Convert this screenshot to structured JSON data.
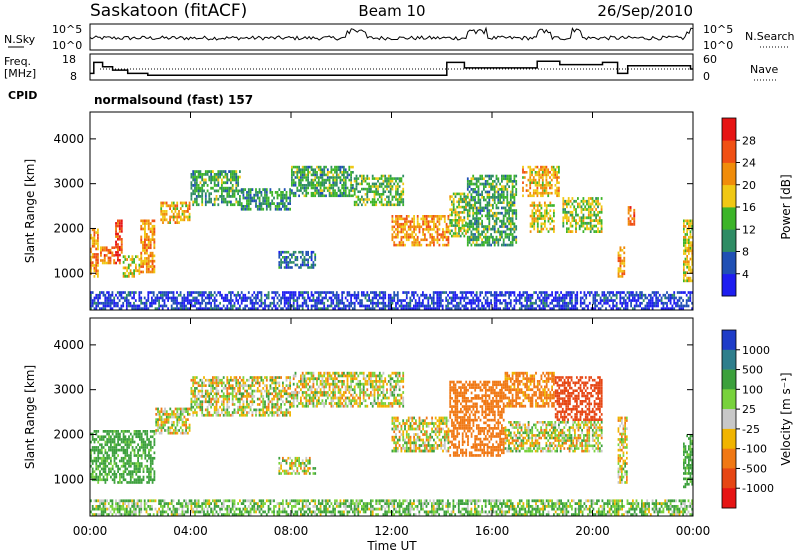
{
  "header": {
    "station": "Saskatoon (fitACF)",
    "beam": "Beam 10",
    "date": "26/Sep/2010",
    "cpid_label": "CPID",
    "cpid_value": "normalsound (fast) 157"
  },
  "strip_nsky": {
    "left_label": "N.Sky",
    "right_label": "N.Search",
    "left_ticks": [
      "10^5",
      "10^0"
    ],
    "right_ticks": [
      "10^5",
      "10^0"
    ]
  },
  "strip_freq": {
    "left_label_1": "Freq.",
    "left_label_2": "[MHz]",
    "right_label": "Nave",
    "left_ticks": [
      "18",
      "8"
    ],
    "right_ticks": [
      "60",
      "0"
    ],
    "freq_steps": [
      {
        "t": 0.0,
        "f": 11
      },
      {
        "t": 0.15,
        "f": 16
      },
      {
        "t": 0.5,
        "f": 14
      },
      {
        "t": 0.9,
        "f": 12.5
      },
      {
        "t": 1.5,
        "f": 11
      },
      {
        "t": 2.3,
        "f": 10.2
      },
      {
        "t": 14.2,
        "f": 16
      },
      {
        "t": 14.9,
        "f": 13.5
      },
      {
        "t": 17.8,
        "f": 16.5
      },
      {
        "t": 18.7,
        "f": 15
      },
      {
        "t": 20.4,
        "f": 16
      },
      {
        "t": 21.0,
        "f": 11
      },
      {
        "t": 21.4,
        "f": 14.5
      },
      {
        "t": 23.9,
        "f": 13
      }
    ]
  },
  "chart_data": [
    {
      "type": "heatmap",
      "panel": "power",
      "ylabel": "Slant Range [km]",
      "xlabel": "Time UT",
      "x_ticks": [
        "00:00",
        "04:00",
        "08:00",
        "12:00",
        "16:00",
        "20:00",
        "00:00"
      ],
      "y_ticks": [
        "1000",
        "2000",
        "3000",
        "4000"
      ],
      "ylim": [
        180,
        4600
      ],
      "xlim": [
        0,
        24
      ],
      "colorbar_label": "Power [dB]",
      "colorbar_ticks": [
        "4",
        "8",
        "12",
        "16",
        "20",
        "24",
        "28"
      ],
      "colorbar_colors": [
        "#1e1ef0",
        "#2050b4",
        "#2e8c64",
        "#3cb428",
        "#f0c814",
        "#f08c0a",
        "#f05014",
        "#e61414"
      ],
      "regions": [
        {
          "t0": 0.0,
          "t1": 0.35,
          "r0": 900,
          "r1": 2000,
          "v": 22
        },
        {
          "t0": 0.4,
          "t1": 1.0,
          "r0": 1200,
          "r1": 1600,
          "v": 24
        },
        {
          "t0": 1.0,
          "t1": 1.3,
          "r0": 1200,
          "r1": 2200,
          "v": 26
        },
        {
          "t0": 1.3,
          "t1": 2.0,
          "r0": 900,
          "r1": 1400,
          "v": 18
        },
        {
          "t0": 2.0,
          "t1": 2.6,
          "r0": 1000,
          "r1": 2200,
          "v": 22
        },
        {
          "t0": 2.8,
          "t1": 4.0,
          "r0": 2100,
          "r1": 2600,
          "v": 20
        },
        {
          "t0": 4.0,
          "t1": 6.0,
          "r0": 2500,
          "r1": 3300,
          "v": 12
        },
        {
          "t0": 6.0,
          "t1": 8.0,
          "r0": 2400,
          "r1": 2900,
          "v": 11
        },
        {
          "t0": 8.0,
          "t1": 10.5,
          "r0": 2700,
          "r1": 3400,
          "v": 12
        },
        {
          "t0": 10.5,
          "t1": 12.5,
          "r0": 2500,
          "r1": 3200,
          "v": 14
        },
        {
          "t0": 12.0,
          "t1": 14.3,
          "r0": 1600,
          "r1": 2300,
          "v": 22
        },
        {
          "t0": 7.5,
          "t1": 9.0,
          "r0": 1100,
          "r1": 1500,
          "v": 8
        },
        {
          "t0": 14.3,
          "t1": 15.0,
          "r0": 1800,
          "r1": 2800,
          "v": 16
        },
        {
          "t0": 15.0,
          "t1": 17.0,
          "r0": 1600,
          "r1": 3200,
          "v": 12
        },
        {
          "t0": 17.2,
          "t1": 18.7,
          "r0": 2700,
          "r1": 3400,
          "v": 20
        },
        {
          "t0": 17.5,
          "t1": 18.5,
          "r0": 1900,
          "r1": 2600,
          "v": 18
        },
        {
          "t0": 18.8,
          "t1": 20.4,
          "r0": 1900,
          "r1": 2700,
          "v": 16
        },
        {
          "t0": 21.0,
          "t1": 21.3,
          "r0": 900,
          "r1": 1600,
          "v": 22
        },
        {
          "t0": 21.4,
          "t1": 21.7,
          "r0": 2000,
          "r1": 2500,
          "v": 24
        },
        {
          "t0": 23.6,
          "t1": 24.0,
          "r0": 800,
          "r1": 2200,
          "v": 18
        },
        {
          "t0": 0.0,
          "t1": 24.0,
          "r0": 180,
          "r1": 600,
          "v": 4
        }
      ]
    },
    {
      "type": "heatmap",
      "panel": "velocity",
      "ylabel": "Slant Range [km]",
      "xlabel": "Time UT",
      "x_ticks": [
        "00:00",
        "04:00",
        "08:00",
        "12:00",
        "16:00",
        "20:00",
        "00:00"
      ],
      "y_ticks": [
        "1000",
        "2000",
        "3000",
        "4000"
      ],
      "ylim": [
        180,
        4600
      ],
      "xlim": [
        0,
        24
      ],
      "colorbar_label": "Velocity [m s⁻¹]",
      "colorbar_ticks": [
        "1000",
        "500",
        "100",
        "25",
        "-25",
        "-100",
        "-500",
        "-1000"
      ],
      "colorbar_colors": [
        "#1e3cc8",
        "#2e7e8c",
        "#3ca03c",
        "#78d23c",
        "#c8c8c8",
        "#f0b400",
        "#f07814",
        "#e64614",
        "#e61414"
      ],
      "regions": [
        {
          "t0": 0.0,
          "t1": 2.6,
          "r0": 900,
          "r1": 2100,
          "v": 200
        },
        {
          "t0": 2.6,
          "t1": 4.0,
          "r0": 2000,
          "r1": 2600,
          "v": 0
        },
        {
          "t0": 4.0,
          "t1": 8.0,
          "r0": 2400,
          "r1": 3300,
          "v": 0
        },
        {
          "t0": 8.0,
          "t1": 12.5,
          "r0": 2600,
          "r1": 3400,
          "v": 0
        },
        {
          "t0": 12.0,
          "t1": 14.3,
          "r0": 1600,
          "r1": 2400,
          "v": 0
        },
        {
          "t0": 7.5,
          "t1": 9.0,
          "r0": 1100,
          "r1": 1500,
          "v": 0
        },
        {
          "t0": 14.3,
          "t1": 16.5,
          "r0": 1500,
          "r1": 3200,
          "v": -300
        },
        {
          "t0": 16.5,
          "t1": 18.5,
          "r0": 2600,
          "r1": 3400,
          "v": -200
        },
        {
          "t0": 18.5,
          "t1": 20.4,
          "r0": 2300,
          "r1": 3300,
          "v": -700
        },
        {
          "t0": 16.5,
          "t1": 20.4,
          "r0": 1600,
          "r1": 2300,
          "v": 0
        },
        {
          "t0": 21.0,
          "t1": 21.4,
          "r0": 900,
          "r1": 2400,
          "v": 0
        },
        {
          "t0": 23.6,
          "t1": 24.0,
          "r0": 800,
          "r1": 2000,
          "v": 200
        },
        {
          "t0": 0.0,
          "t1": 24.0,
          "r0": 180,
          "r1": 550,
          "v": 100
        }
      ]
    }
  ]
}
